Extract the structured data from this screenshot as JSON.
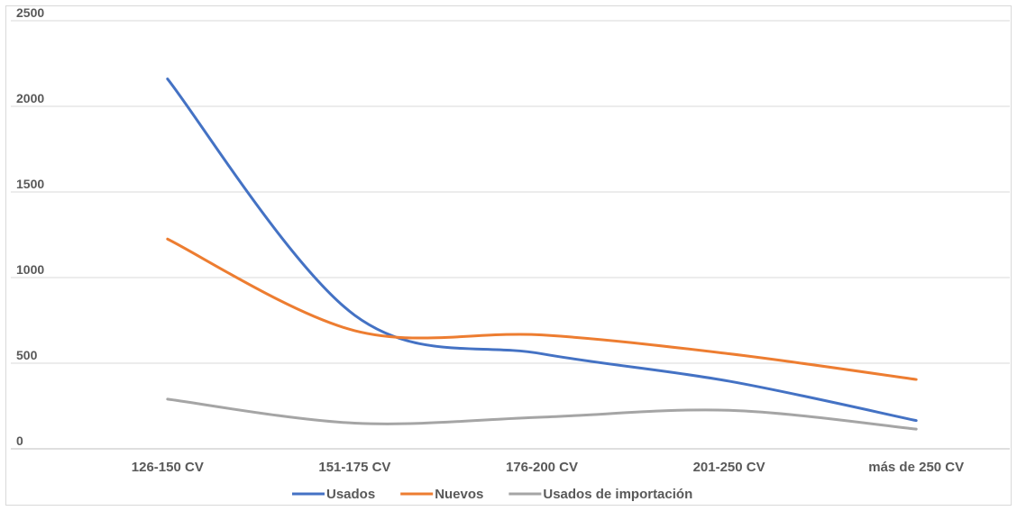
{
  "chart_data": {
    "type": "line",
    "smooth": true,
    "categories": [
      "126-150 CV",
      "151-175 CV",
      "176-200 CV",
      "201-250 CV",
      "más de 250 CV"
    ],
    "series": [
      {
        "name": "Usados",
        "color": "#4472c4",
        "values": [
          2160,
          780,
          555,
          395,
          165
        ]
      },
      {
        "name": "Nuevos",
        "color": "#ed7d31",
        "values": [
          1225,
          690,
          665,
          555,
          405
        ]
      },
      {
        "name": "Usados de importación",
        "color": "#a5a5a5",
        "values": [
          290,
          150,
          185,
          225,
          115
        ]
      }
    ],
    "yticks": [
      0,
      500,
      1000,
      1500,
      2000,
      2500
    ],
    "ylim": [
      0,
      2500
    ],
    "grid": true,
    "legend_position": "bottom"
  }
}
